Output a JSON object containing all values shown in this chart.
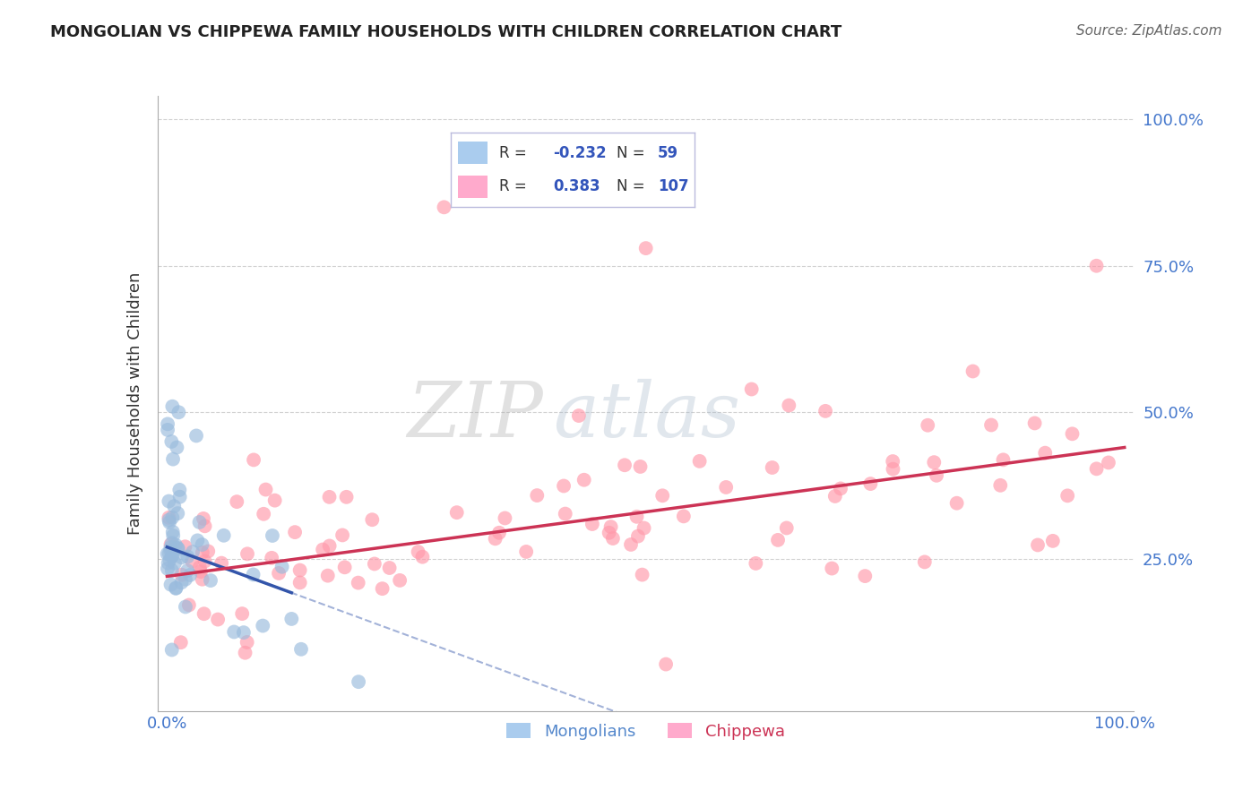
{
  "title": "MONGOLIAN VS CHIPPEWA FAMILY HOUSEHOLDS WITH CHILDREN CORRELATION CHART",
  "source": "Source: ZipAtlas.com",
  "ylabel": "Family Households with Children",
  "mongolian_R": -0.232,
  "mongolian_N": 59,
  "chippewa_R": 0.383,
  "chippewa_N": 107,
  "blue_scatter_color": "#99BBDD",
  "pink_scatter_color": "#FF99AA",
  "blue_line_color": "#3355AA",
  "pink_line_color": "#CC3355",
  "watermark_zip": "ZIP",
  "watermark_atlas": "atlas",
  "grid_color": "#CCCCCC",
  "background_color": "#FFFFFF",
  "blue_legend_color": "#AACCEE",
  "pink_legend_color": "#FFAACC",
  "tick_label_color": "#4477CC",
  "title_color": "#222222",
  "source_color": "#666666",
  "ylabel_color": "#333333",
  "blue_trend_intercept": 0.27,
  "blue_trend_slope": -0.6,
  "pink_trend_intercept": 0.22,
  "pink_trend_slope": 0.22
}
